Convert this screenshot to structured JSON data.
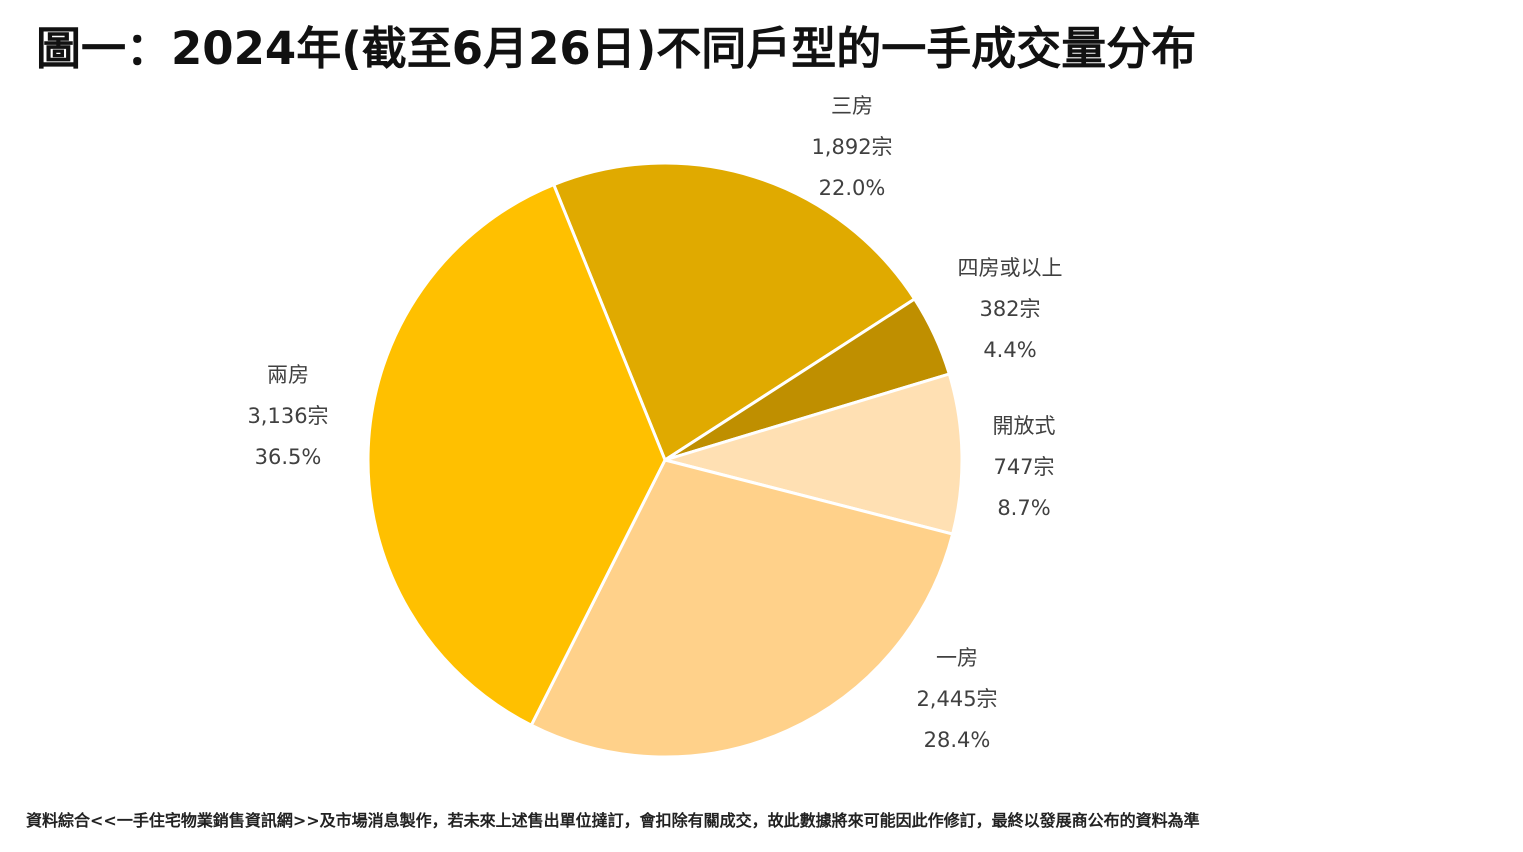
{
  "chart_data": {
    "type": "pie",
    "title": "圖一：2024年(截至6月26日)不同戶型的一手成交量分布",
    "slices": [
      {
        "name": "三房",
        "count_label": "1,892宗",
        "percent_label": "22.0%",
        "value": 1892,
        "percent": 22.0,
        "color": "#E0AA00"
      },
      {
        "name": "四房或以上",
        "count_label": "382宗",
        "percent_label": "4.4%",
        "value": 382,
        "percent": 4.4,
        "color": "#BF8F00"
      },
      {
        "name": "開放式",
        "count_label": "747宗",
        "percent_label": "8.7%",
        "value": 747,
        "percent": 8.7,
        "color": "#FFE0B3"
      },
      {
        "name": "一房",
        "count_label": "2,445宗",
        "percent_label": "28.4%",
        "value": 2445,
        "percent": 28.4,
        "color": "#FFD18A"
      },
      {
        "name": "兩房",
        "count_label": "3,136宗",
        "percent_label": "36.5%",
        "value": 3136,
        "percent": 36.5,
        "color": "#FFC000"
      }
    ],
    "legend": "none"
  },
  "footnote": "資料綜合<<一手住宅物業銷售資訊網>>及市場消息製作，若未來上述售出單位撻訂，會扣除有關成交，故此數據將來可能因此作修訂，最終以發展商公布的資料為準"
}
